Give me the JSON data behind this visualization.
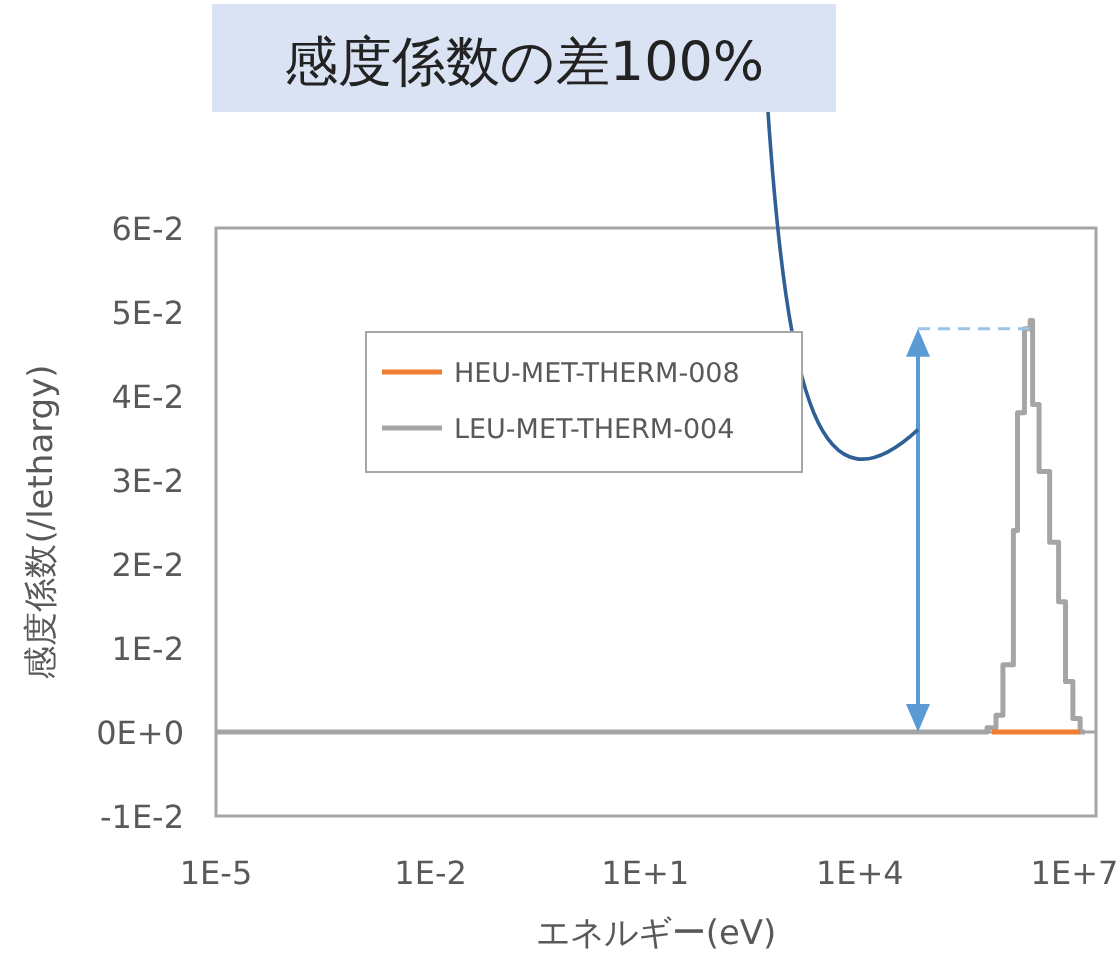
{
  "chart_data": {
    "type": "step",
    "xlabel": "エネルギー(eV)",
    "ylabel": "感度係数(/lethargy)",
    "log": "x",
    "xlim": [
      1e-05,
      20000000.0
    ],
    "xticks": [
      {
        "value": 1e-05,
        "label": "1E-5"
      },
      {
        "value": 0.01,
        "label": "1E-2"
      },
      {
        "value": 10,
        "label": "1E+1"
      },
      {
        "value": 10000,
        "label": "1E+4"
      },
      {
        "value": 10000000,
        "label": "1E+7"
      }
    ],
    "ylim": [
      -0.01,
      0.06
    ],
    "yticks": [
      {
        "value": -0.01,
        "label": "-1E-2"
      },
      {
        "value": 0,
        "label": "0E+0"
      },
      {
        "value": 0.01,
        "label": "1E-2"
      },
      {
        "value": 0.02,
        "label": "2E-2"
      },
      {
        "value": 0.03,
        "label": "3E-2"
      },
      {
        "value": 0.04,
        "label": "4E-2"
      },
      {
        "value": 0.05,
        "label": "5E-2"
      },
      {
        "value": 0.06,
        "label": "6E-2"
      }
    ],
    "legend": "top left",
    "series": [
      {
        "name": "HEU-MET-THERM-008",
        "color": "#ed7d31",
        "x": [
          700000,
          12000000
        ],
        "values": [
          0,
          0
        ]
      },
      {
        "name": "LEU-MET-THERM-004",
        "color": "#a5a5a5",
        "x": [
          1e-05,
          600000,
          800000,
          1000000,
          1400000,
          1600000,
          2000000,
          2400000,
          2600000,
          3200000,
          4500000,
          6000000,
          7500000,
          9500000,
          12000000,
          14000000
        ],
        "values": [
          0,
          0.0005,
          0.002,
          0.008,
          0.024,
          0.038,
          0.048,
          0.049,
          0.039,
          0.031,
          0.0226,
          0.0155,
          0.006,
          0.0016,
          0,
          0
        ]
      }
    ],
    "ref_lines": [
      {
        "axis": "y",
        "value": 0.048,
        "color": "#9dc3e6",
        "line_style": "dashed"
      }
    ],
    "annotations": [
      "感度係数の差100%"
    ]
  }
}
